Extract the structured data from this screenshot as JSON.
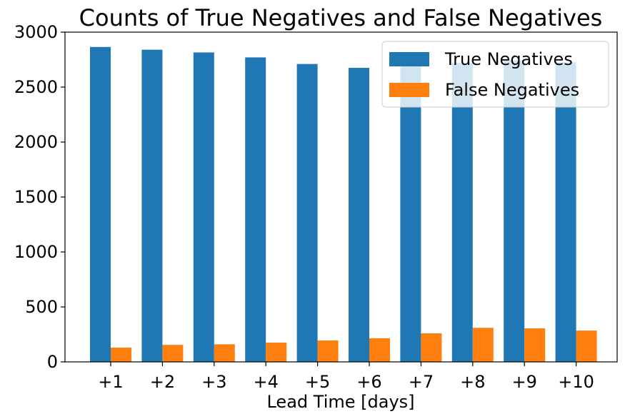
{
  "chart_data": {
    "type": "bar",
    "title": "Counts of True Negatives and False Negatives",
    "xlabel": "Lead Time [days]",
    "ylabel": "",
    "categories": [
      "+1",
      "+2",
      "+3",
      "+4",
      "+5",
      "+6",
      "+7",
      "+8",
      "+9",
      "+10"
    ],
    "series": [
      {
        "name": "True Negatives",
        "color": "#1f77b4",
        "values": [
          2865,
          2840,
          2815,
          2770,
          2710,
          2675,
          2690,
          2720,
          2745,
          2725
        ]
      },
      {
        "name": "False Negatives",
        "color": "#ff7f0e",
        "values": [
          130,
          155,
          160,
          175,
          195,
          215,
          260,
          310,
          305,
          285
        ]
      }
    ],
    "ylim": [
      0,
      3000
    ],
    "yticks": [
      0,
      500,
      1000,
      1500,
      2000,
      2500,
      3000
    ],
    "grid": false,
    "legend_position": "top-right"
  }
}
